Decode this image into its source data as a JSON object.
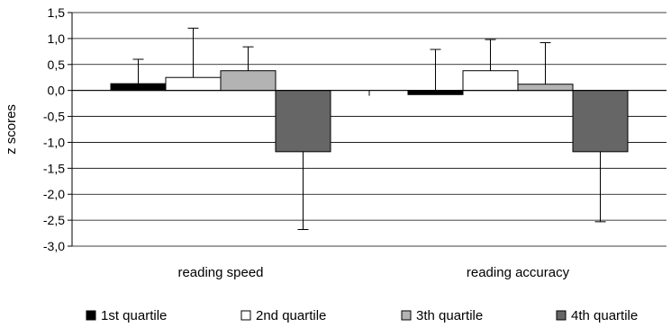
{
  "chart_data": {
    "type": "bar",
    "title": "",
    "xlabel": "",
    "ylabel": "z scores",
    "ylim": [
      -3.0,
      1.5
    ],
    "ytick_step": 0.5,
    "ytick_labels": [
      "1,5",
      "1,0",
      "0,5",
      "0,0",
      "-0,5",
      "-1,0",
      "-1,5",
      "-2,0",
      "-2,5",
      "-3,0"
    ],
    "grid": "horizontal",
    "legend_position": "bottom",
    "categories": [
      "reading speed",
      "reading accuracy"
    ],
    "series": [
      {
        "name": "1st quartile",
        "color": "#000000",
        "values": [
          0.13,
          -0.08
        ],
        "error": [
          0.47,
          0.87
        ],
        "error_direction": [
          "up",
          "up"
        ]
      },
      {
        "name": "2nd quartile",
        "color": "#ffffff",
        "values": [
          0.25,
          0.38
        ],
        "error": [
          0.95,
          0.6
        ],
        "error_direction": [
          "up",
          "up"
        ]
      },
      {
        "name": "3th quartile",
        "color": "#b3b3b3",
        "values": [
          0.38,
          0.12
        ],
        "error": [
          0.46,
          0.8
        ],
        "error_direction": [
          "up",
          "up"
        ]
      },
      {
        "name": "4th quartile",
        "color": "#666666",
        "values": [
          -1.18,
          -1.18
        ],
        "error": [
          1.5,
          1.35
        ],
        "error_direction": [
          "down",
          "down"
        ]
      }
    ]
  }
}
